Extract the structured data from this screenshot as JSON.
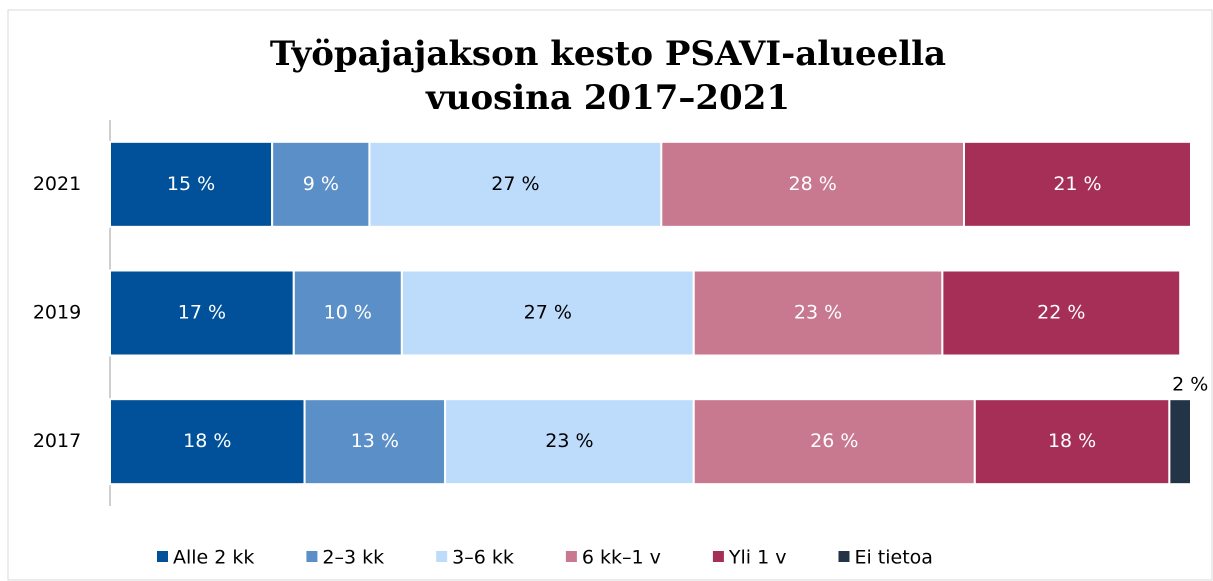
{
  "chart_data": {
    "type": "stacked_barh",
    "title": [
      "Työpajajakson kesto PSAVI-alueella",
      "vuosina 2017–2021"
    ],
    "categories": [
      "2021",
      "2019",
      "2017"
    ],
    "xlim": [
      0,
      100
    ],
    "legend": "bottom",
    "series": [
      {
        "name": "Alle 2 kk",
        "color": "#00509a",
        "values": [
          15,
          17,
          18
        ],
        "value_labels": [
          "15 %",
          "17 %",
          "18 %"
        ]
      },
      {
        "name": "2–3 kk",
        "color": "#5b8fc7",
        "values": [
          9,
          10,
          13
        ],
        "value_labels": [
          "9 %",
          "10 %",
          "13 %"
        ]
      },
      {
        "name": "3–6 kk",
        "color": "#bddcfb",
        "values": [
          27,
          27,
          23
        ],
        "value_labels": [
          "27 %",
          "27 %",
          "23 %"
        ]
      },
      {
        "name": "6 kk–1 v",
        "color": "#c8788f",
        "values": [
          28,
          23,
          26
        ],
        "value_labels": [
          "28 %",
          "23 %",
          "26 %"
        ]
      },
      {
        "name": "Yli 1 v",
        "color": "#a52f56",
        "values": [
          21,
          22,
          18
        ],
        "value_labels": [
          "21 %",
          "22 %",
          "18 %"
        ]
      },
      {
        "name": "Ei tietoa",
        "color": "#243447",
        "values": [
          null,
          null,
          2
        ],
        "value_labels": [
          null,
          null,
          "2 %"
        ]
      }
    ]
  }
}
